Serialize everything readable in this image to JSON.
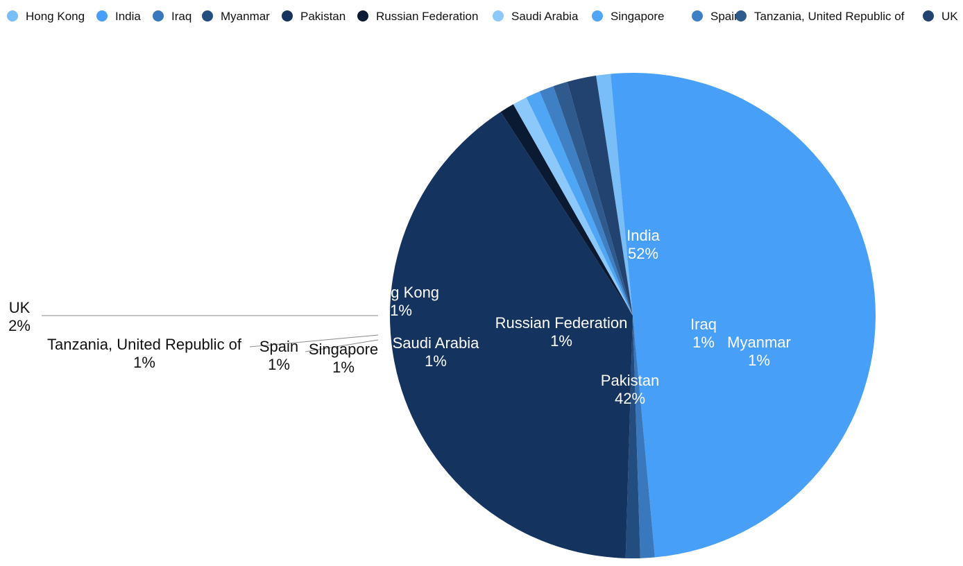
{
  "chart_data": {
    "type": "pie",
    "title": "",
    "legend_position": "top",
    "slices": [
      {
        "name": "Hong Kong",
        "value": 1,
        "label": "Hong Kong\n1%",
        "color": "#79BEF7"
      },
      {
        "name": "India",
        "value": 52,
        "label": "India\n52%",
        "color": "#489FF7"
      },
      {
        "name": "Iraq",
        "value": 1,
        "label": "Iraq\n1%",
        "color": "#3A78BD"
      },
      {
        "name": "Myanmar",
        "value": 1,
        "label": "Myanmar\n1%",
        "color": "#234C7F"
      },
      {
        "name": "Pakistan",
        "value": 42,
        "label": "Pakistan\n42%",
        "color": "#14335F"
      },
      {
        "name": "Russian Federation",
        "value": 1,
        "label": "Russian Federation\n1%",
        "color": "#0B1A33"
      },
      {
        "name": "Saudi Arabia",
        "value": 1,
        "label": "Saudi Arabia\n1%",
        "color": "#8CC8FA"
      },
      {
        "name": "Singapore",
        "value": 1,
        "label": "Singapore\n1%",
        "color": "#4FA6F4"
      },
      {
        "name": "Spain",
        "value": 1,
        "label": "Spain\n1%",
        "color": "#3F80C4"
      },
      {
        "name": "Tanzania, United Republic of",
        "value": 1,
        "label": "Tanzania, United Republic of\n1%",
        "color": "#2E5A8E"
      },
      {
        "name": "UK",
        "value": 2,
        "label": "UK\n2%",
        "color": "#22436F"
      }
    ]
  }
}
